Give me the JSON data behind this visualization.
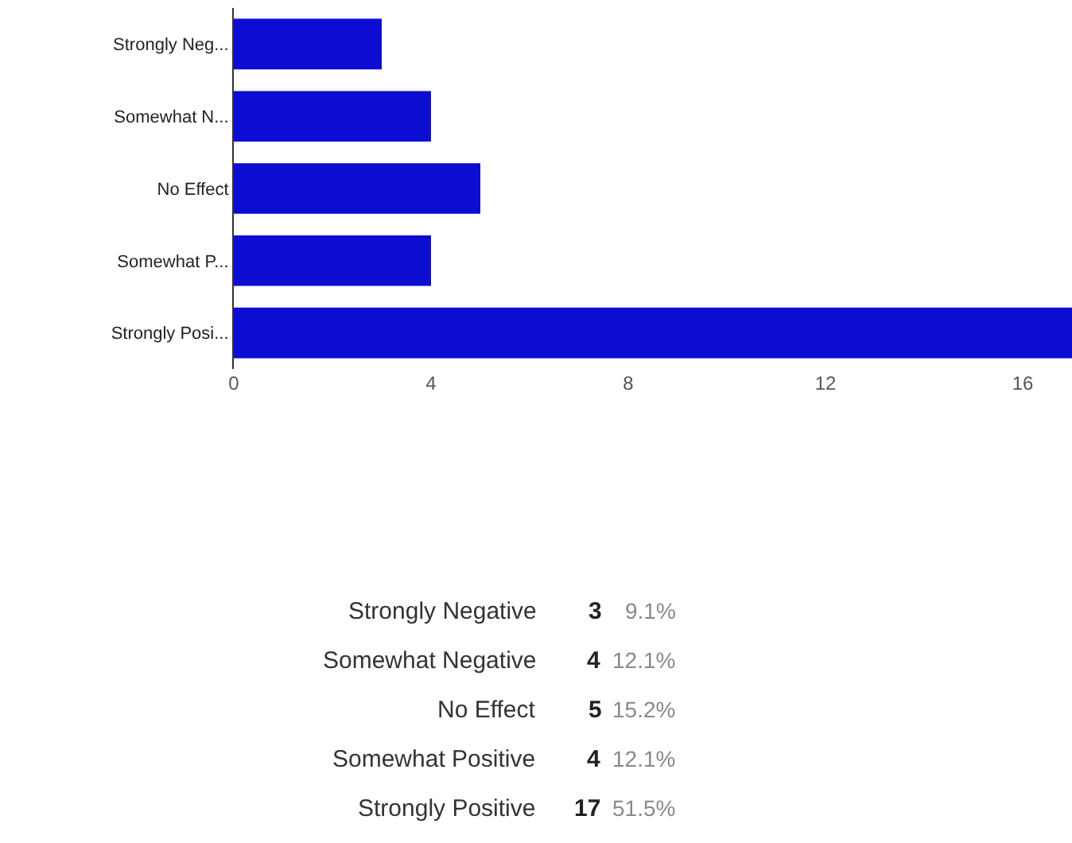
{
  "chart_data": {
    "type": "bar",
    "orientation": "horizontal",
    "categories": [
      "Strongly Neg...",
      "Somewhat N...",
      "No Effect",
      "Somewhat P...",
      "Strongly Posi..."
    ],
    "values": [
      3,
      4,
      5,
      4,
      17
    ],
    "color": "#0c0cd2",
    "xlim": [
      0,
      17
    ],
    "xticks": [
      0,
      4,
      8,
      12,
      16
    ],
    "annotations": [
      "Strongly Negative",
      "3",
      "9.1%",
      "Somewhat Negative",
      "4",
      "12.1%",
      "No Effect",
      "5",
      "15.2%",
      "Somewhat Positive",
      "4",
      "12.1%",
      "Strongly Positive",
      "17",
      "51.5%"
    ]
  }
}
